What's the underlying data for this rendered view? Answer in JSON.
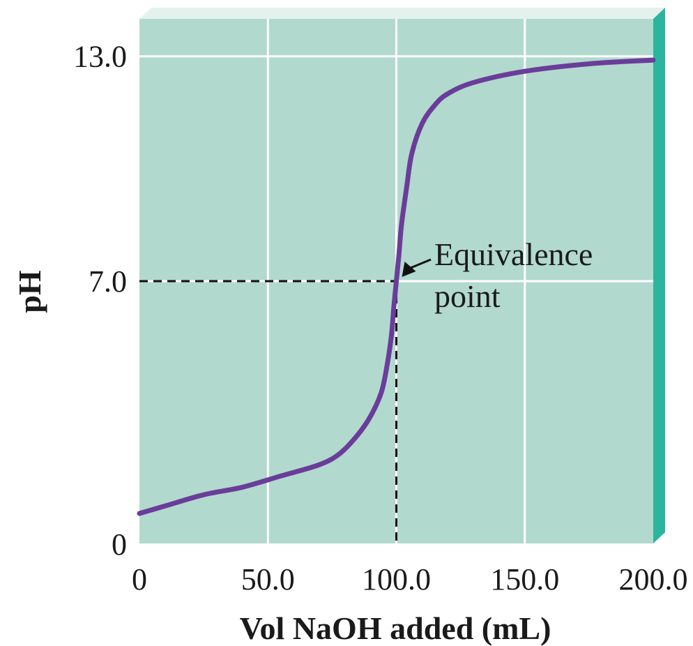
{
  "chart_data": {
    "type": "line",
    "title": "",
    "xlabel": "Vol NaOH added (mL)",
    "ylabel": "pH",
    "xlim": [
      0,
      200
    ],
    "ylim": [
      0,
      14.0
    ],
    "x_ticks": [
      0,
      50,
      100,
      150,
      200
    ],
    "x_tick_labels": [
      "0",
      "50.0",
      "100.0",
      "150.0",
      "200.0"
    ],
    "y_ticks": [
      0,
      7,
      13
    ],
    "y_tick_labels": [
      "0",
      "7.0",
      "13.0"
    ],
    "grid": true,
    "series": [
      {
        "x": [
          0,
          10,
          25,
          40,
          55,
          70,
          78,
          85,
          90,
          94,
          96,
          98,
          99,
          100,
          101,
          102,
          104,
          106,
          110,
          115,
          120,
          130,
          150,
          175,
          200
        ],
        "y": [
          0.8,
          1.0,
          1.3,
          1.5,
          1.8,
          2.1,
          2.4,
          2.9,
          3.4,
          4.0,
          4.6,
          5.5,
          6.3,
          7.0,
          7.7,
          8.5,
          9.5,
          10.4,
          11.2,
          11.7,
          12.0,
          12.3,
          12.6,
          12.8,
          12.9
        ],
        "color": "#6a3d9a"
      }
    ],
    "annotations": [
      {
        "text_line1": "Equivalence",
        "text_line2": "point",
        "x": 100,
        "y": 7.0
      }
    ],
    "colors": {
      "plot_bg": "#b2d9cd",
      "grid": "#ffffff",
      "edge_right": "#2bb59f",
      "edge_top": "#e4f2ee",
      "curve": "#6a3d9a",
      "text": "#1a1a1a"
    }
  }
}
